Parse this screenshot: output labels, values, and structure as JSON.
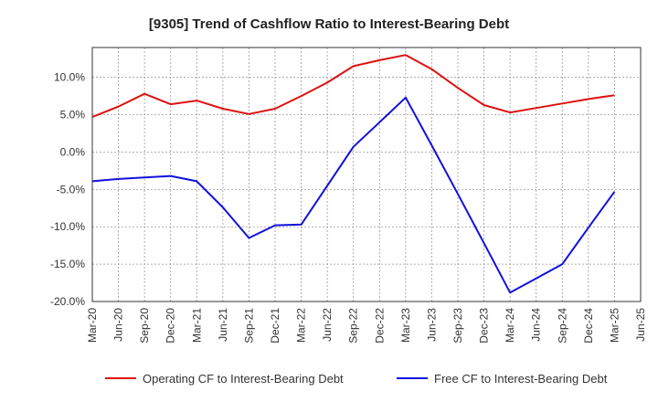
{
  "chart_data": {
    "type": "line",
    "title": "[9305]  Trend of Cashflow Ratio to Interest-Bearing Debt",
    "xlabel": "",
    "ylabel": "",
    "x_tick_labels": [
      "Mar-20",
      "Jun-20",
      "Sep-20",
      "Dec-20",
      "Mar-21",
      "Jun-21",
      "Sep-21",
      "Dec-21",
      "Mar-22",
      "Jun-22",
      "Sep-22",
      "Dec-22",
      "Mar-23",
      "Jun-23",
      "Sep-23",
      "Dec-23",
      "Mar-24",
      "Jun-24",
      "Sep-24",
      "Dec-24",
      "Mar-25",
      "Jun-25"
    ],
    "y_ticks": [
      10,
      5,
      0,
      -5,
      -10,
      -15,
      -20
    ],
    "y_tick_labels": [
      "10.0%",
      "5.0%",
      "0.0%",
      "-5.0%",
      "-10.0%",
      "-15.0%",
      "-20.0%"
    ],
    "ylim": [
      -20,
      14
    ],
    "grid": true,
    "legend_position": "bottom",
    "series": [
      {
        "name": "Operating CF to Interest-Bearing Debt",
        "color": "#dd1111",
        "x": [
          "Mar-20",
          "Jun-20",
          "Sep-20",
          "Dec-20",
          "Mar-21",
          "Jun-21",
          "Sep-21",
          "Dec-21",
          "Mar-22",
          "Jun-22",
          "Sep-22",
          "Dec-22",
          "Mar-23",
          "Jun-23",
          "Sep-23",
          "Dec-23",
          "Mar-24",
          "Jun-24",
          "Sep-24",
          "Dec-24",
          "Mar-25"
        ],
        "values": [
          4.7,
          6.1,
          7.8,
          6.4,
          6.9,
          5.8,
          5.1,
          5.8,
          7.5,
          9.3,
          11.5,
          12.3,
          13.0,
          11.1,
          8.6,
          6.3,
          5.3,
          5.9,
          6.5,
          7.1,
          7.6
        ]
      },
      {
        "name": "Free CF to Interest-Bearing Debt",
        "color": "#1111dd",
        "x": [
          "Mar-20",
          "Jun-20",
          "Sep-20",
          "Dec-20",
          "Mar-21",
          "Jun-21",
          "Sep-21",
          "Dec-21",
          "Mar-22",
          "Jun-22",
          "Sep-22",
          "Dec-22",
          "Mar-23",
          "Jun-23",
          "Sep-23",
          "Dec-23",
          "Mar-24",
          "Jun-24",
          "Sep-24",
          "Dec-24",
          "Mar-25"
        ],
        "values": [
          -3.9,
          -3.6,
          -3.4,
          -3.2,
          -3.9,
          -7.4,
          -11.5,
          -9.8,
          -9.7,
          -4.5,
          0.7,
          4.0,
          7.3,
          0.9,
          -5.6,
          -12.2,
          -18.8,
          -16.9,
          -15.0,
          -10.1,
          -5.3
        ]
      }
    ]
  }
}
